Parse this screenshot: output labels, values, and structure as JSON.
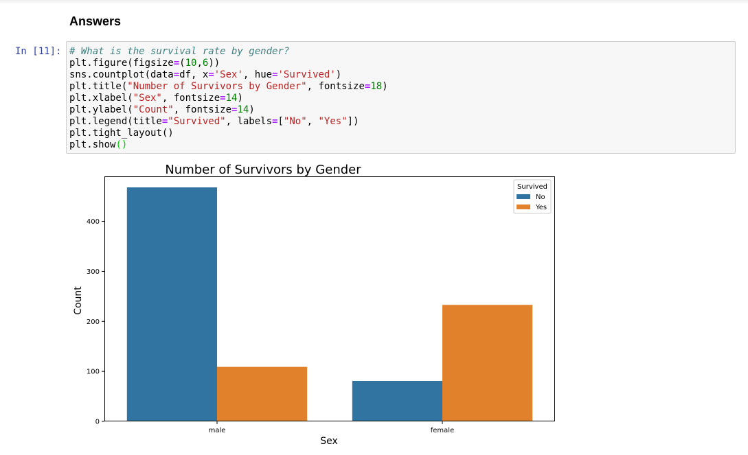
{
  "notebook": {
    "heading": "Answers",
    "cell_prompt": "In [11]:",
    "code_lines": [
      [
        {
          "t": "# What is the survival rate by gender?",
          "c": "c-com"
        }
      ],
      [
        {
          "t": "plt.figure(figsize",
          "c": ""
        },
        {
          "t": "=",
          "c": "c-op"
        },
        {
          "t": "(",
          "c": ""
        },
        {
          "t": "10",
          "c": "c-num"
        },
        {
          "t": ",",
          "c": ""
        },
        {
          "t": "6",
          "c": "c-num"
        },
        {
          "t": "))",
          "c": ""
        }
      ],
      [
        {
          "t": "sns.countplot(data",
          "c": ""
        },
        {
          "t": "=",
          "c": "c-op"
        },
        {
          "t": "df, x",
          "c": ""
        },
        {
          "t": "=",
          "c": "c-op"
        },
        {
          "t": "'Sex'",
          "c": "c-str"
        },
        {
          "t": ", hue",
          "c": ""
        },
        {
          "t": "=",
          "c": "c-op"
        },
        {
          "t": "'Survived'",
          "c": "c-str"
        },
        {
          "t": ")",
          "c": ""
        }
      ],
      [
        {
          "t": "plt.title(",
          "c": ""
        },
        {
          "t": "\"Number of Survivors by Gender\"",
          "c": "c-str"
        },
        {
          "t": ", fontsize",
          "c": ""
        },
        {
          "t": "=",
          "c": "c-op"
        },
        {
          "t": "18",
          "c": "c-num"
        },
        {
          "t": ")",
          "c": ""
        }
      ],
      [
        {
          "t": "plt.xlabel(",
          "c": ""
        },
        {
          "t": "\"Sex\"",
          "c": "c-str"
        },
        {
          "t": ", fontsize",
          "c": ""
        },
        {
          "t": "=",
          "c": "c-op"
        },
        {
          "t": "14",
          "c": "c-num"
        },
        {
          "t": ")",
          "c": ""
        }
      ],
      [
        {
          "t": "plt.ylabel(",
          "c": ""
        },
        {
          "t": "\"Count\"",
          "c": "c-str"
        },
        {
          "t": ", fontsize",
          "c": ""
        },
        {
          "t": "=",
          "c": "c-op"
        },
        {
          "t": "14",
          "c": "c-num"
        },
        {
          "t": ")",
          "c": ""
        }
      ],
      [
        {
          "t": "plt.legend(title",
          "c": ""
        },
        {
          "t": "=",
          "c": "c-op"
        },
        {
          "t": "\"Survived\"",
          "c": "c-str"
        },
        {
          "t": ", labels",
          "c": ""
        },
        {
          "t": "=",
          "c": "c-op"
        },
        {
          "t": "[",
          "c": ""
        },
        {
          "t": "\"No\"",
          "c": "c-str"
        },
        {
          "t": ", ",
          "c": ""
        },
        {
          "t": "\"Yes\"",
          "c": "c-str"
        },
        {
          "t": "])",
          "c": ""
        }
      ],
      [
        {
          "t": "plt.tight_layout()",
          "c": ""
        }
      ],
      [
        {
          "t": "plt.show",
          "c": ""
        },
        {
          "t": "()",
          "c": "c-par"
        }
      ]
    ]
  },
  "chart_data": {
    "type": "bar",
    "title": "Number of Survivors by Gender",
    "xlabel": "Sex",
    "ylabel": "Count",
    "categories": [
      "male",
      "female"
    ],
    "series": [
      {
        "name": "No",
        "values": [
          468,
          81
        ],
        "color": "#3274a1"
      },
      {
        "name": "Yes",
        "values": [
          109,
          233
        ],
        "color": "#e1812c"
      }
    ],
    "ylim": [
      0,
      490
    ],
    "yticks": [
      0,
      100,
      200,
      300,
      400
    ],
    "legend": {
      "title": "Survived",
      "placement": "top-right"
    },
    "grid": false
  }
}
